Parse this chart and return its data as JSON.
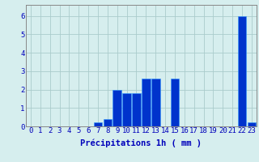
{
  "hours": [
    0,
    1,
    2,
    3,
    4,
    5,
    6,
    7,
    8,
    9,
    10,
    11,
    12,
    13,
    14,
    15,
    16,
    17,
    18,
    19,
    20,
    21,
    22,
    23
  ],
  "values": [
    0,
    0,
    0,
    0,
    0,
    0,
    0,
    0.2,
    0.4,
    2.0,
    1.8,
    1.8,
    2.6,
    2.6,
    0,
    2.6,
    0,
    0,
    0,
    0,
    0,
    0,
    6.0,
    0.2
  ],
  "bar_color": "#0033cc",
  "bar_edge_color": "#3399ff",
  "background_color": "#d6eeee",
  "grid_color": "#aacccc",
  "xlabel": "Précipitations 1h ( mm )",
  "ylim": [
    0,
    6.6
  ],
  "yticks": [
    0,
    1,
    2,
    3,
    4,
    5,
    6
  ],
  "xlabel_color": "#0000bb",
  "xlabel_fontsize": 7.5,
  "tick_fontsize": 6.5,
  "tick_color": "#0000bb",
  "spine_color": "#888888"
}
